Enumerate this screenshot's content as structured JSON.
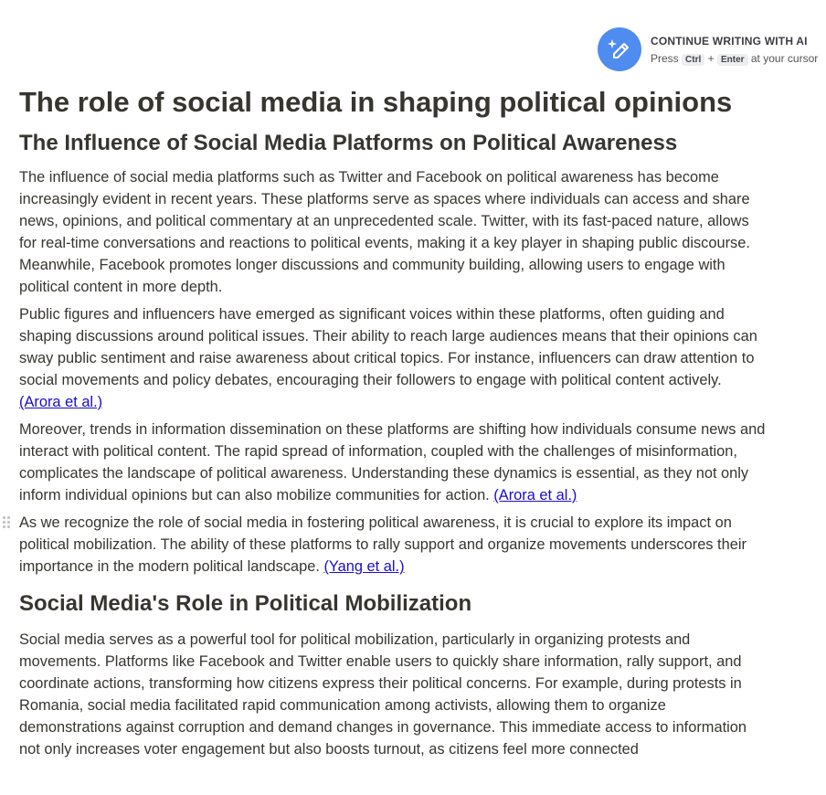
{
  "ai_prompt": {
    "icon": "sparkle-pencil-icon",
    "title": "CONTINUE WRITING WITH AI",
    "press": "Press",
    "key1": "Ctrl",
    "plus": "+",
    "key2": "Enter",
    "suffix": "at your cursor",
    "color": "#4e8cf0"
  },
  "document": {
    "title": "The role of social media in shaping political opinions",
    "section1": {
      "heading": "The Influence of Social Media Platforms on Political Awareness",
      "p1": "The influence of social media platforms such as Twitter and Facebook on political awareness has become increasingly evident in recent years. These platforms serve as spaces where individuals can access and share news, opinions, and political commentary at an unprecedented scale. Twitter, with its fast-paced nature, allows for real-time conversations and reactions to political events, making it a key player in shaping public discourse. Meanwhile, Facebook promotes longer discussions and community building, allowing users to engage with political content in more depth.",
      "p2": "Public figures and influencers have emerged as significant voices within these platforms, often guiding and shaping discussions around political issues. Their ability to reach large audiences means that their opinions can sway public sentiment and raise awareness about critical topics. For instance, influencers can draw attention to social movements and policy debates, encouraging their followers to engage with political content actively. ",
      "p2_cite": "(Arora et al.)",
      "p3": "Moreover, trends in information dissemination on these platforms are shifting how individuals consume news and interact with political content. The rapid spread of information, coupled with the challenges of misinformation, complicates the landscape of political awareness. Understanding these dynamics is essential, as they not only inform individual opinions but can also mobilize communities for action. ",
      "p3_cite": "(Arora et al.)",
      "p4": "As we recognize the role of social media in fostering political awareness, it is crucial to explore its impact on political mobilization. The ability of these platforms to rally support and organize movements underscores their importance in the modern political landscape. ",
      "p4_cite": "(Yang et al.)"
    },
    "section2": {
      "heading": "Social Media's Role in Political Mobilization",
      "p1": "Social media serves as a powerful tool for political mobilization, particularly in organizing protests and movements. Platforms like Facebook and Twitter enable users to quickly share information, rally support, and coordinate actions, transforming how citizens express their political concerns. For example, during protests in Romania, social media facilitated rapid communication among activists, allowing them to organize demonstrations against corruption and demand changes in governance. This immediate access to information not only increases voter engagement but also boosts turnout, as citizens feel more connected"
    }
  }
}
